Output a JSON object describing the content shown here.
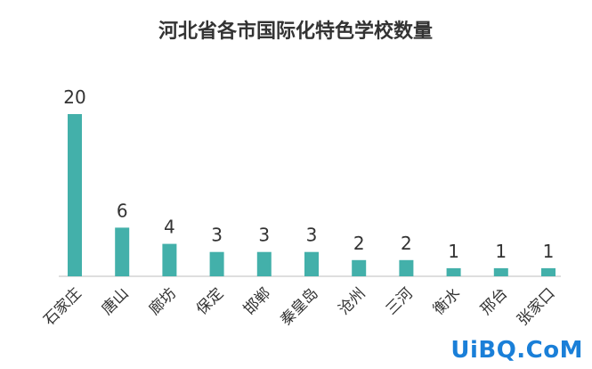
{
  "chart_data": {
    "type": "bar",
    "title": "河北省各市国际化特色学校数量",
    "categories": [
      "石家庄",
      "唐山",
      "廊坊",
      "保定",
      "邯郸",
      "秦皇岛",
      "沧州",
      "三河",
      "衡水",
      "邢台",
      "张家口"
    ],
    "values": [
      20,
      6,
      4,
      3,
      3,
      3,
      2,
      2,
      1,
      1,
      1
    ],
    "data_labels": [
      "20",
      "6",
      "4",
      "3",
      "3",
      "3",
      "2",
      "2",
      "1",
      "1",
      "1"
    ],
    "xlabel": "",
    "ylabel": "",
    "ylim": [
      0,
      20
    ],
    "grid": false,
    "legend": "none",
    "colors": {
      "bar": "#43b0aa",
      "axis": "#bdbdbd",
      "text": "#333333"
    }
  },
  "watermark": {
    "text": "UiBQ.CoM"
  }
}
